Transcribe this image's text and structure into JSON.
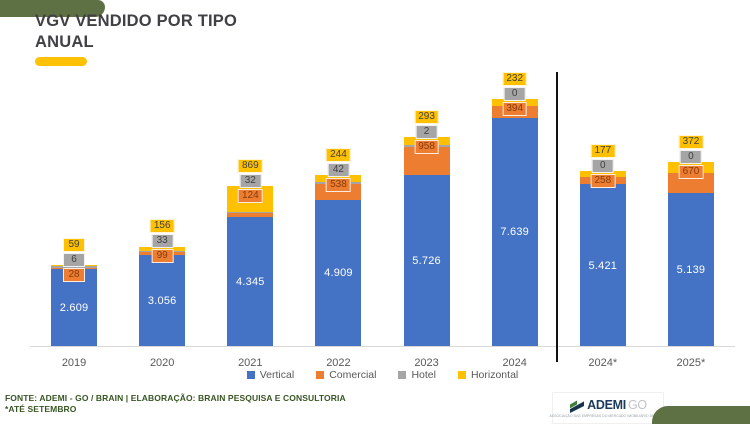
{
  "slide": {
    "title": "VGV VENDIDO POR TIPO\nANUAL",
    "footer_line1": "FONTE: ADEMI - GO / BRAIN  | ELABORAÇÃO: BRAIN PESQUISA E CONSULTORIA",
    "footer_line2": "*ATÉ SETEMBRO"
  },
  "logo": {
    "brand_bold": "ADEMI",
    "brand_light": "GO",
    "tagline": "ASSOCIAÇÃO DAS EMPRESAS DO MERCADO IMOBILIÁRIO DE GOIÁS"
  },
  "colors": {
    "accent_band": "#5e7145",
    "title_underline": "#FFC103",
    "vertical": "#4472C4",
    "comercial": "#ED7D31",
    "hotel": "#A5A5A5",
    "horizontal": "#FFC000",
    "footer_text": "#375623",
    "divider": "#111111"
  },
  "chart_data": {
    "type": "bar",
    "stacked": true,
    "title": "VGV VENDIDO POR TIPO ANUAL",
    "xlabel": "",
    "ylabel": "",
    "grid": false,
    "legend_position": "bottom",
    "categories": [
      "2019",
      "2020",
      "2021",
      "2022",
      "2023",
      "2024",
      "2024*",
      "2025*"
    ],
    "separator_after_category": "2024",
    "series": [
      {
        "name": "Vertical",
        "color": "#4472C4",
        "values": [
          2609,
          3056,
          4345,
          4909,
          5726,
          7639,
          5421,
          5139
        ],
        "labels": [
          "2.609",
          "3.056",
          "4.345",
          "4.909",
          "5.726",
          "7.639",
          "5.421",
          "5.139"
        ],
        "label_text_color": "#ffffff"
      },
      {
        "name": "Comercial",
        "color": "#ED7D31",
        "values": [
          28,
          99,
          124,
          538,
          958,
          394,
          258,
          670
        ],
        "labels": [
          "28",
          "99",
          "124",
          "538",
          "958",
          "394",
          "258",
          "670"
        ],
        "label_text_color": "#843c0c"
      },
      {
        "name": "Hotel",
        "color": "#A5A5A5",
        "values": [
          6,
          33,
          32,
          42,
          2,
          0,
          0,
          0
        ],
        "labels": [
          "6",
          "33",
          "32",
          "42",
          "2",
          "0",
          "0",
          "0"
        ],
        "label_text_color": "#404040"
      },
      {
        "name": "Horizontal",
        "color": "#FFC000",
        "values": [
          59,
          156,
          869,
          244,
          293,
          232,
          177,
          372
        ],
        "labels": [
          "59",
          "156",
          "869",
          "244",
          "293",
          "232",
          "177",
          "372"
        ],
        "label_text_color": "#404040"
      }
    ]
  }
}
